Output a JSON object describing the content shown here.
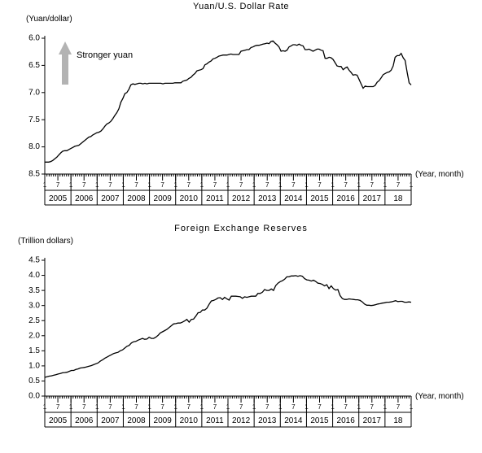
{
  "chart1": {
    "type": "line",
    "title": "Yuan/U.S. Dollar Rate",
    "y_unit_label": "(Yuan/dollar)",
    "x_unit_label": "(Year, month)",
    "annotation": "Stronger yuan",
    "ylim": [
      8.5,
      6.0
    ],
    "yticks": [
      6.0,
      6.5,
      7.0,
      7.5,
      8.0,
      8.5
    ],
    "ytick_labels": [
      "6.0",
      "6.5",
      "7.0",
      "7.5",
      "8.0",
      "8.5"
    ],
    "months_per_year": [
      1,
      7
    ],
    "years": [
      "2005",
      "2006",
      "2007",
      "2008",
      "2009",
      "2010",
      "2011",
      "2012",
      "2013",
      "2014",
      "2015",
      "2016",
      "2017",
      "18"
    ],
    "series_color": "#000000",
    "background_color": "#ffffff",
    "line_width": 1.3,
    "title_fontsize": 11,
    "values": [
      8.28,
      8.28,
      8.28,
      8.27,
      8.25,
      8.22,
      8.19,
      8.15,
      8.11,
      8.08,
      8.07,
      8.07,
      8.05,
      8.03,
      8.01,
      7.99,
      7.98,
      7.97,
      7.94,
      7.91,
      7.88,
      7.85,
      7.82,
      7.81,
      7.78,
      7.76,
      7.74,
      7.73,
      7.71,
      7.67,
      7.62,
      7.58,
      7.56,
      7.53,
      7.48,
      7.42,
      7.37,
      7.3,
      7.18,
      7.11,
      7.02,
      7.0,
      6.94,
      6.86,
      6.84,
      6.85,
      6.84,
      6.83,
      6.83,
      6.84,
      6.83,
      6.84,
      6.83,
      6.83,
      6.83,
      6.83,
      6.83,
      6.83,
      6.83,
      6.84,
      6.83,
      6.83,
      6.83,
      6.83,
      6.83,
      6.82,
      6.82,
      6.82,
      6.82,
      6.79,
      6.78,
      6.77,
      6.74,
      6.72,
      6.68,
      6.65,
      6.6,
      6.59,
      6.58,
      6.56,
      6.49,
      6.47,
      6.44,
      6.42,
      6.38,
      6.37,
      6.35,
      6.33,
      6.32,
      6.31,
      6.31,
      6.31,
      6.3,
      6.29,
      6.3,
      6.3,
      6.3,
      6.3,
      6.24,
      6.23,
      6.22,
      6.21,
      6.21,
      6.17,
      6.16,
      6.14,
      6.13,
      6.13,
      6.12,
      6.11,
      6.1,
      6.09,
      6.1,
      6.06,
      6.05,
      6.09,
      6.12,
      6.16,
      6.24,
      6.23,
      6.24,
      6.22,
      6.16,
      6.14,
      6.12,
      6.12,
      6.13,
      6.11,
      6.13,
      6.14,
      6.21,
      6.21,
      6.2,
      6.22,
      6.24,
      6.22,
      6.2,
      6.2,
      6.22,
      6.23,
      6.37,
      6.37,
      6.35,
      6.36,
      6.39,
      6.45,
      6.51,
      6.52,
      6.52,
      6.58,
      6.55,
      6.53,
      6.59,
      6.63,
      6.68,
      6.67,
      6.68,
      6.76,
      6.84,
      6.92,
      6.88,
      6.89,
      6.89,
      6.89,
      6.89,
      6.87,
      6.81,
      6.78,
      6.73,
      6.67,
      6.65,
      6.63,
      6.62,
      6.59,
      6.51,
      6.35,
      6.32,
      6.32,
      6.28,
      6.36,
      6.41,
      6.63,
      6.82,
      6.86
    ]
  },
  "chart2": {
    "type": "line",
    "title": "Foreign Exchange Reserves",
    "y_unit_label": "(Trillion dollars)",
    "x_unit_label": "(Year, month)",
    "ylim": [
      0.0,
      4.5
    ],
    "yticks": [
      0.0,
      0.5,
      1.0,
      1.5,
      2.0,
      2.5,
      3.0,
      3.5,
      4.0,
      4.5
    ],
    "ytick_labels": [
      "0.0",
      "0.5",
      "1.0",
      "1.5",
      "2.0",
      "2.5",
      "3.0",
      "3.5",
      "4.0",
      "4.5"
    ],
    "months_per_year": [
      1,
      7
    ],
    "years": [
      "2005",
      "2006",
      "2007",
      "2008",
      "2009",
      "2010",
      "2011",
      "2012",
      "2013",
      "2014",
      "2015",
      "2016",
      "2017",
      "18"
    ],
    "series_color": "#000000",
    "background_color": "#ffffff",
    "line_width": 1.3,
    "title_fontsize": 11,
    "values": [
      0.62,
      0.64,
      0.66,
      0.67,
      0.69,
      0.71,
      0.73,
      0.75,
      0.77,
      0.78,
      0.79,
      0.82,
      0.85,
      0.85,
      0.88,
      0.9,
      0.93,
      0.94,
      0.95,
      0.97,
      0.99,
      1.01,
      1.04,
      1.07,
      1.1,
      1.16,
      1.2,
      1.25,
      1.29,
      1.33,
      1.37,
      1.41,
      1.43,
      1.45,
      1.5,
      1.53,
      1.59,
      1.65,
      1.68,
      1.76,
      1.8,
      1.81,
      1.85,
      1.88,
      1.91,
      1.88,
      1.89,
      1.95,
      1.91,
      1.91,
      1.95,
      2.01,
      2.09,
      2.13,
      2.17,
      2.21,
      2.27,
      2.33,
      2.39,
      2.4,
      2.42,
      2.42,
      2.45,
      2.49,
      2.54,
      2.45,
      2.54,
      2.55,
      2.65,
      2.76,
      2.77,
      2.85,
      2.85,
      2.91,
      3.04,
      3.15,
      3.17,
      3.2,
      3.25,
      3.26,
      3.2,
      3.27,
      3.22,
      3.18,
      3.31,
      3.31,
      3.31,
      3.3,
      3.29,
      3.24,
      3.29,
      3.27,
      3.29,
      3.31,
      3.31,
      3.31,
      3.4,
      3.4,
      3.44,
      3.53,
      3.5,
      3.5,
      3.55,
      3.5,
      3.66,
      3.74,
      3.79,
      3.82,
      3.87,
      3.95,
      3.95,
      3.98,
      3.98,
      3.99,
      3.97,
      3.99,
      3.97,
      3.89,
      3.85,
      3.84,
      3.81,
      3.84,
      3.8,
      3.74,
      3.73,
      3.7,
      3.65,
      3.69,
      3.56,
      3.65,
      3.56,
      3.51,
      3.53,
      3.33,
      3.23,
      3.2,
      3.2,
      3.22,
      3.21,
      3.2,
      3.19,
      3.19,
      3.17,
      3.12,
      3.05,
      3.01,
      3.01,
      3.0,
      3.01,
      3.03,
      3.05,
      3.06,
      3.08,
      3.09,
      3.11,
      3.11,
      3.12,
      3.14,
      3.16,
      3.13,
      3.14,
      3.14,
      3.11,
      3.11,
      3.12,
      3.11
    ]
  }
}
